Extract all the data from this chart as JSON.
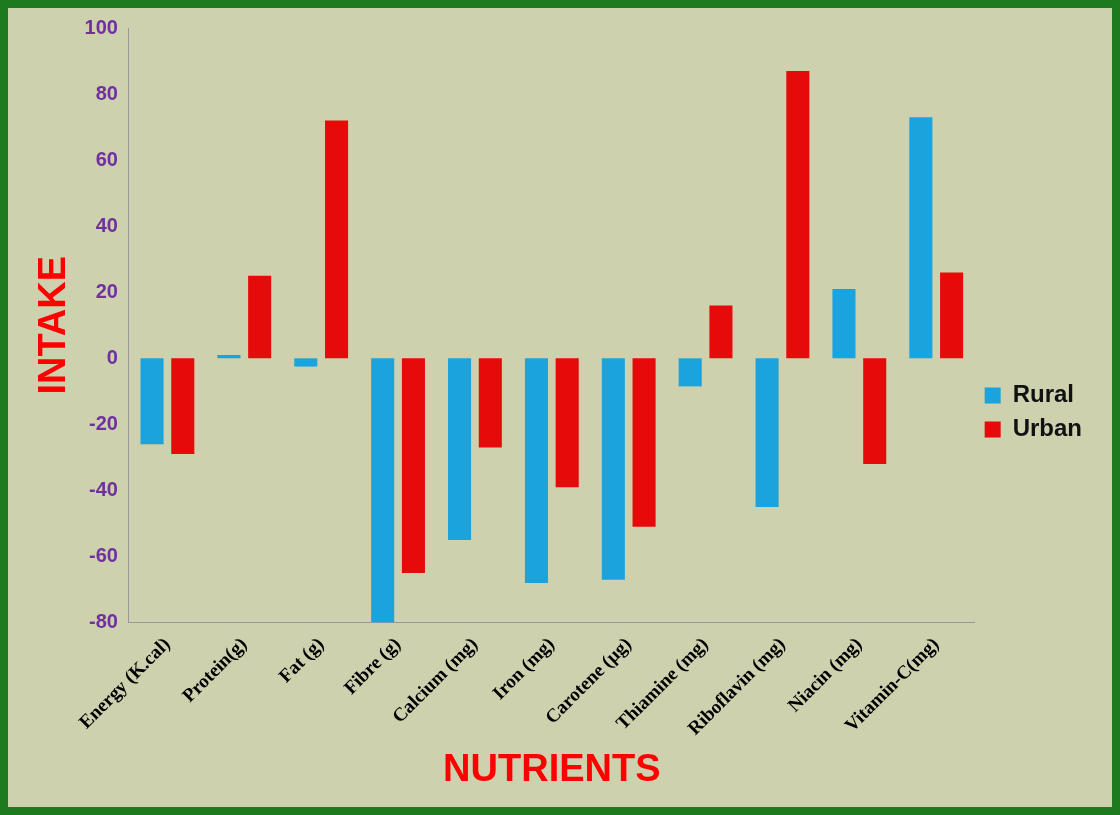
{
  "chart_data": {
    "type": "bar",
    "xlabel": "NUTRIENTS",
    "ylabel": "INTAKE",
    "categories": [
      "Energy (K.cal)",
      "Protein(g)",
      "Fat (g)",
      "Fibre (g)",
      "Calcium (mg)",
      "Iron (mg)",
      "Carotene (µg)",
      "Thiamine (mg)",
      "Riboflavin (mg)",
      "Niacin (mg)",
      "Vitamin-C(mg)"
    ],
    "series": [
      {
        "name": "Rural",
        "color": "#1aa3dc",
        "values": [
          -26,
          1,
          -2.5,
          -80,
          -55,
          -68,
          -67,
          -8.5,
          -45,
          21,
          73
        ]
      },
      {
        "name": "Urban",
        "color": "#e60a0a",
        "values": [
          -29,
          25,
          72,
          -65,
          -27,
          -39,
          -51,
          16,
          87,
          -32,
          26
        ]
      }
    ],
    "ylim": [
      -80,
      100
    ],
    "yticks": [
      -80,
      -60,
      -40,
      -20,
      0,
      20,
      40,
      60,
      80,
      100
    ],
    "grid": false,
    "legend": "right"
  }
}
